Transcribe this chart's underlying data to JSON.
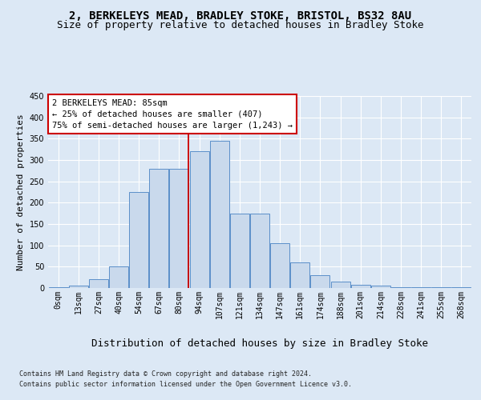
{
  "title1": "2, BERKELEYS MEAD, BRADLEY STOKE, BRISTOL, BS32 8AU",
  "title2": "Size of property relative to detached houses in Bradley Stoke",
  "xlabel": "Distribution of detached houses by size in Bradley Stoke",
  "ylabel": "Number of detached properties",
  "categories": [
    "0sqm",
    "13sqm",
    "27sqm",
    "40sqm",
    "54sqm",
    "67sqm",
    "80sqm",
    "94sqm",
    "107sqm",
    "121sqm",
    "134sqm",
    "147sqm",
    "161sqm",
    "174sqm",
    "188sqm",
    "201sqm",
    "214sqm",
    "228sqm",
    "241sqm",
    "255sqm",
    "268sqm"
  ],
  "values": [
    2,
    5,
    20,
    50,
    225,
    280,
    280,
    320,
    345,
    175,
    175,
    105,
    60,
    30,
    15,
    8,
    5,
    2,
    1,
    1,
    2
  ],
  "bar_color": "#c9d9ec",
  "bar_edge_color": "#5b8fc9",
  "vline_x_index": 6,
  "vline_color": "#cc0000",
  "annotation_text": "2 BERKELEYS MEAD: 85sqm\n← 25% of detached houses are smaller (407)\n75% of semi-detached houses are larger (1,243) →",
  "annotation_box_color": "#ffffff",
  "annotation_box_edge": "#cc0000",
  "ylim": [
    0,
    450
  ],
  "yticks": [
    0,
    50,
    100,
    150,
    200,
    250,
    300,
    350,
    400,
    450
  ],
  "footer1": "Contains HM Land Registry data © Crown copyright and database right 2024.",
  "footer2": "Contains public sector information licensed under the Open Government Licence v3.0.",
  "bg_color": "#dce8f5",
  "plot_bg_color": "#dce8f5",
  "grid_color": "#ffffff",
  "title1_fontsize": 10,
  "title2_fontsize": 9,
  "xlabel_fontsize": 9,
  "ylabel_fontsize": 8,
  "tick_fontsize": 7,
  "annotation_fontsize": 7.5,
  "footer_fontsize": 6
}
